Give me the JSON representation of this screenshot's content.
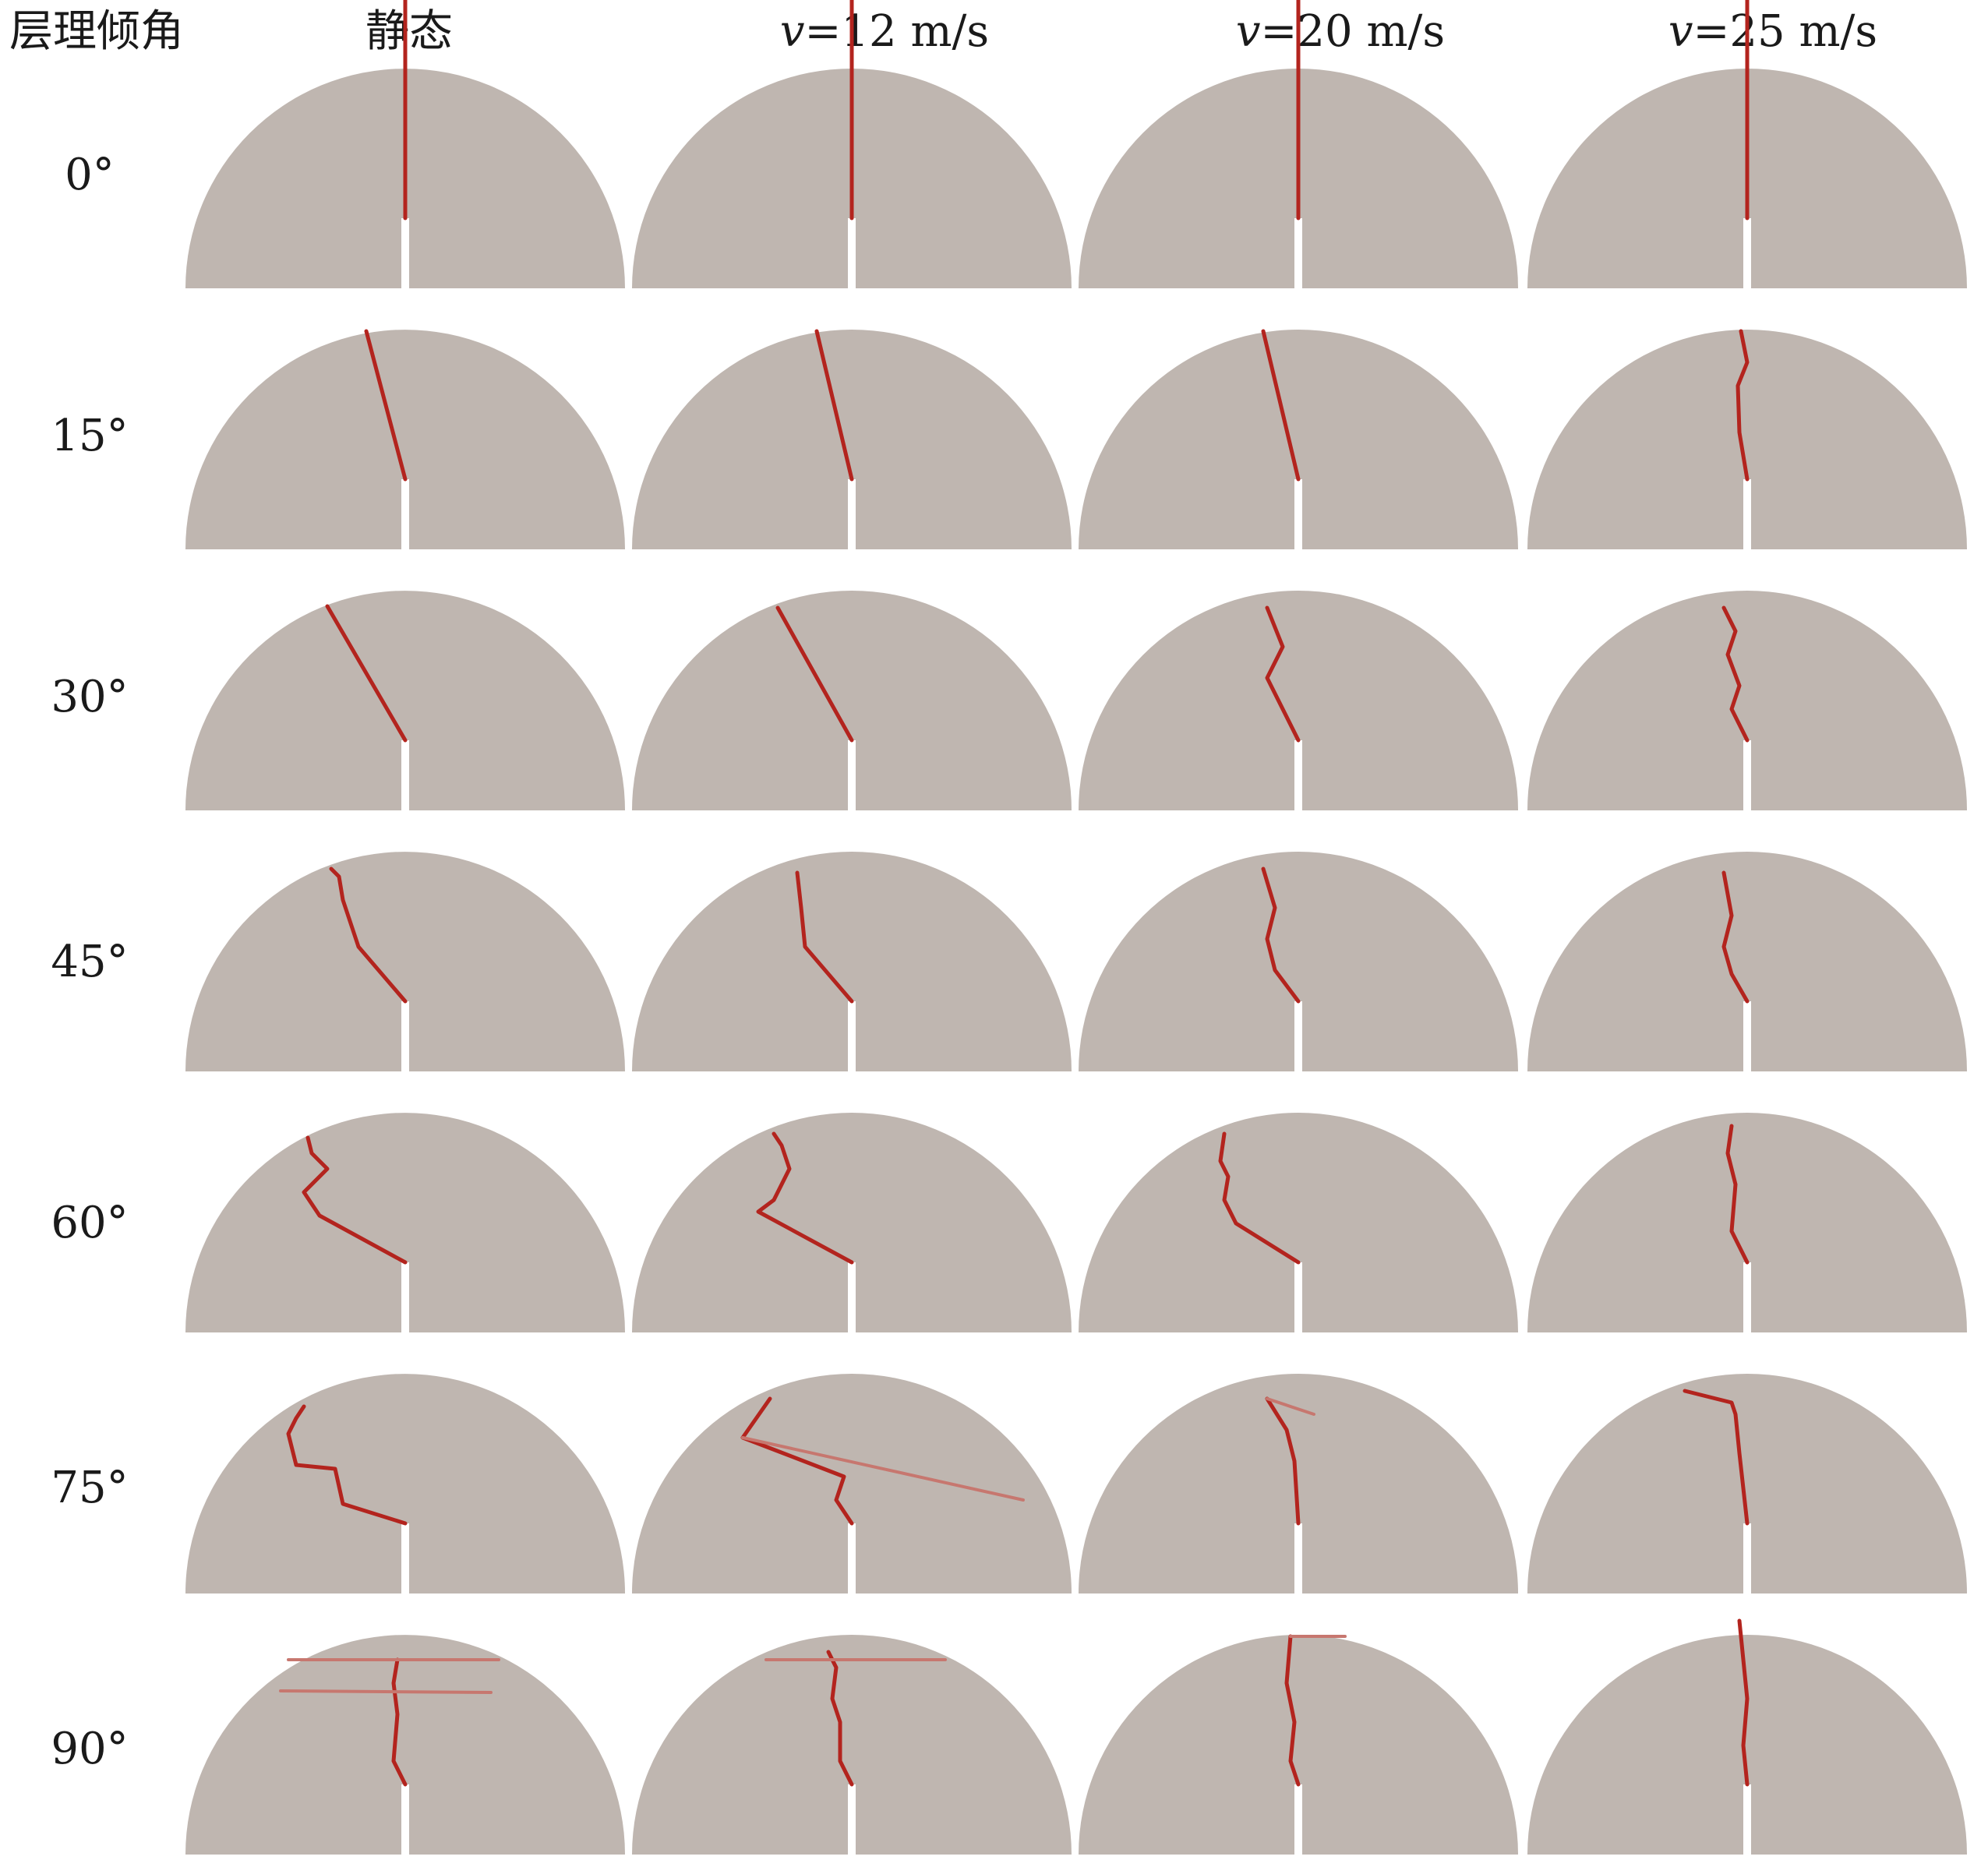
{
  "figure": {
    "corner_label": "层理倾角",
    "columns": [
      {
        "id": "static",
        "label": "静态",
        "symbol": "",
        "value": ""
      },
      {
        "id": "v12",
        "label": "",
        "symbol": "v",
        "value": "=12 m/s"
      },
      {
        "id": "v20",
        "label": "",
        "symbol": "v",
        "value": "=20 m/s"
      },
      {
        "id": "v25",
        "label": "",
        "symbol": "v",
        "value": "=25 m/s"
      }
    ],
    "rows": [
      {
        "id": "a0",
        "label": "0°"
      },
      {
        "id": "a15",
        "label": "15°"
      },
      {
        "id": "a30",
        "label": "30°"
      },
      {
        "id": "a45",
        "label": "45°"
      },
      {
        "id": "a60",
        "label": "60°"
      },
      {
        "id": "a75",
        "label": "75°"
      },
      {
        "id": "a90",
        "label": "90°"
      }
    ],
    "colors": {
      "specimen": "#bfb6b0",
      "crack": "#b3241e",
      "crack_faint": "#c7776f",
      "background": "#ffffff"
    }
  }
}
